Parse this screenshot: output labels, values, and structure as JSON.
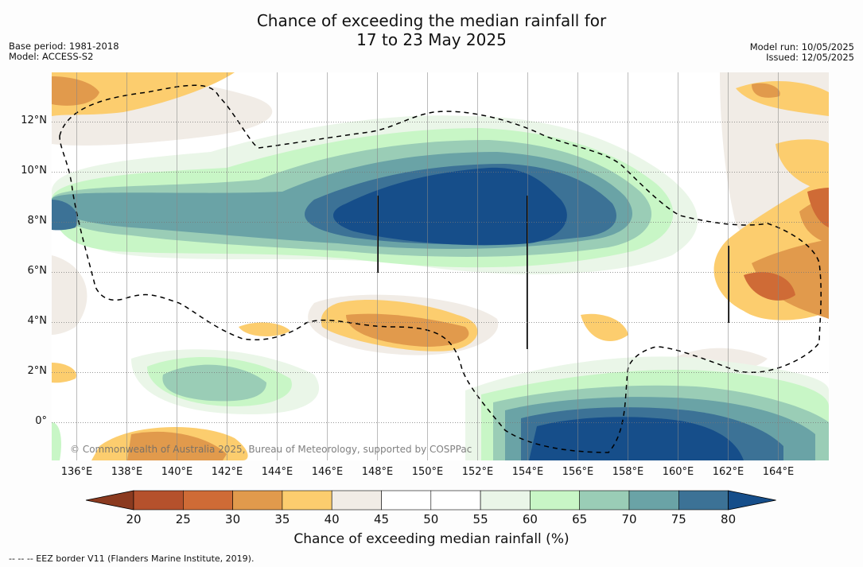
{
  "title_line1": "Chance of exceeding the median rainfall for",
  "title_line2": "17 to 23 May 2025",
  "base_period": "Base period: 1981-2018",
  "model": "Model: ACCESS-S2",
  "model_run": "Model run: 10/05/2025",
  "issued": "Issued: 12/05/2025",
  "copyright": "© Commonwealth of Australia 2025, Bureau of Meteorology, supported by COSPPac",
  "footnote": "--  --  -- EEZ border V11 (Flanders Marine Institute, 2019).",
  "colorbar": {
    "title": "Chance of exceeding median rainfall (%)",
    "ticks": [
      "20",
      "25",
      "30",
      "35",
      "40",
      "45",
      "50",
      "55",
      "60",
      "65",
      "70",
      "75",
      "80"
    ],
    "colors": [
      "#8b3a1f",
      "#b5512c",
      "#cf6b36",
      "#e19a4c",
      "#fccd6e",
      "#f1ece6",
      "#ffffff",
      "#ffffff",
      "#eaf6e8",
      "#c8f6c6",
      "#9acdb6",
      "#6aa3a6",
      "#3c7296",
      "#164e8a"
    ]
  },
  "map": {
    "x_ticks": [
      "136°E",
      "138°E",
      "140°E",
      "142°E",
      "144°E",
      "146°E",
      "148°E",
      "150°E",
      "152°E",
      "154°E",
      "156°E",
      "158°E",
      "160°E",
      "162°E",
      "164°E"
    ],
    "y_ticks": [
      "12°N",
      "10°N",
      "8°N",
      "6°N",
      "4°N",
      "2°N",
      "0°"
    ],
    "lon_range": [
      135,
      166
    ],
    "lat_range": [
      -1.5,
      14
    ]
  }
}
